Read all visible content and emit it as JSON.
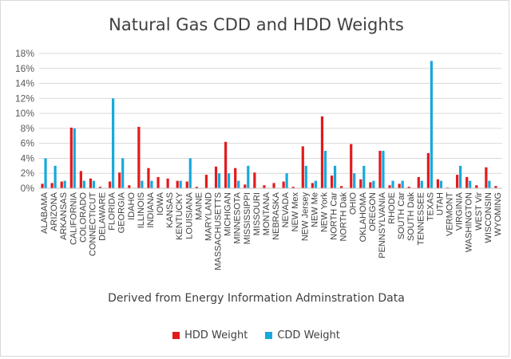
{
  "chart_data": {
    "type": "bar",
    "title": "Natural Gas CDD and HDD Weights",
    "xlabel": "Derived from Energy Information Adminstration Data",
    "ylabel": "",
    "ylim": [
      0,
      18
    ],
    "y_ticks": [
      "0%",
      "2%",
      "4%",
      "6%",
      "8%",
      "10%",
      "12%",
      "14%",
      "16%",
      "18%"
    ],
    "grid": true,
    "legend_position": "bottom",
    "categories": [
      "ALABAMA",
      "ARIZONA",
      "ARKANSAS",
      "CALIFORNIA",
      "COLORADO",
      "CONNECTICUT",
      "DELAWARE",
      "FLORIDA",
      "GEORGIA",
      "IDAHO",
      "ILLINOIS",
      "INDIANA",
      "IOWA",
      "KANSAS",
      "KENTUCKY",
      "LOUISIANA",
      "MAINE",
      "MARYLAND",
      "MASSACHUSETTS",
      "MICHIGAN",
      "MINNESOTA",
      "MISSISSIPPI",
      "MISSOURI",
      "MONTANA",
      "NEBRASKA",
      "NEVADA",
      "NEW Mex",
      "NEW Jersey",
      "NEW Me",
      "NEW York",
      "NORTH Car",
      "NORTH Dak",
      "OHIO",
      "OKLAHOMA",
      "OREGON",
      "PENNSYLVANIA",
      "RHODE",
      "SOUTH Car",
      "SOUTH Dak",
      "TENNESSEE",
      "TEXAS",
      "UTAH",
      "VERMONT",
      "VIRGINIA",
      "WASHINGTON",
      "WEST Vir",
      "WISCONSIN",
      "WYOMING"
    ],
    "series": [
      {
        "name": "HDD Weight",
        "color": "#e31a1c",
        "values": [
          0.6,
          0.7,
          0.9,
          8.1,
          2.3,
          1.3,
          0.2,
          0.9,
          2.1,
          0.4,
          8.2,
          2.7,
          1.5,
          1.3,
          1.0,
          0.9,
          0.2,
          1.8,
          2.9,
          6.2,
          2.7,
          0.5,
          2.1,
          0.4,
          0.7,
          0.9,
          0.2,
          5.6,
          0.7,
          9.6,
          1.7,
          0.3,
          5.9,
          1.2,
          0.8,
          5.0,
          0.4,
          0.6,
          0.2,
          1.5,
          4.7,
          1.2,
          0.1,
          1.8,
          1.5,
          0.4,
          2.8,
          0.3
        ]
      },
      {
        "name": "CDD Weight",
        "color": "#17a9dc",
        "values": [
          4.0,
          3.0,
          1.0,
          8.0,
          1.0,
          1.0,
          0.0,
          12.0,
          4.0,
          0.0,
          1.0,
          1.0,
          0.0,
          0.0,
          1.0,
          4.0,
          0.0,
          0.0,
          2.0,
          2.0,
          1.0,
          3.0,
          0.0,
          0.0,
          0.0,
          2.0,
          0.0,
          3.0,
          1.0,
          5.0,
          3.0,
          0.0,
          2.0,
          3.0,
          1.0,
          5.0,
          1.0,
          1.0,
          0.0,
          1.0,
          17.0,
          1.0,
          0.0,
          3.0,
          1.0,
          0.0,
          1.0,
          0.0
        ]
      }
    ]
  }
}
